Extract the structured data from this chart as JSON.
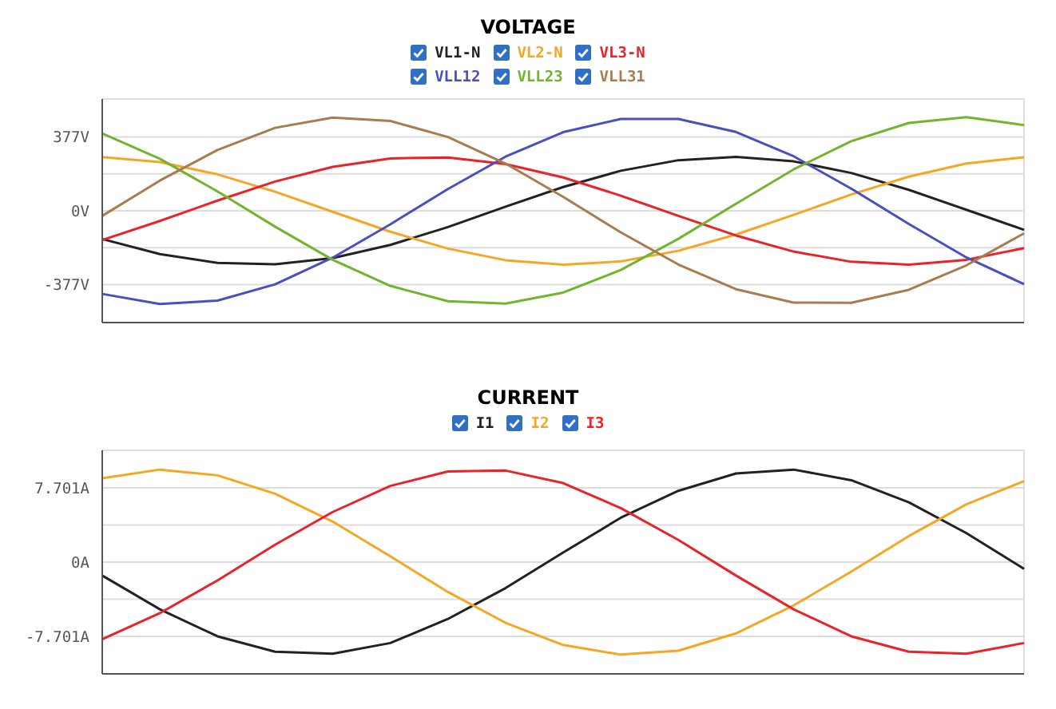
{
  "chart_data": [
    {
      "type": "line",
      "title": "VOLTAGE",
      "legend": "top",
      "grid": true,
      "marker": "none",
      "line_style": "solid",
      "tick_labels": "y",
      "categories": [
        null,
        null,
        null,
        null,
        null,
        null,
        null,
        null,
        null,
        null,
        null,
        null,
        null,
        null,
        null,
        null,
        null
      ],
      "ylim": [
        -570,
        570
      ],
      "yticks": [
        {
          "value": -377,
          "label": "-377V"
        },
        {
          "value": -188.5,
          "label": null
        },
        {
          "value": 0,
          "label": "0V"
        },
        {
          "value": 188.5,
          "label": null
        },
        {
          "value": 377,
          "label": "377V"
        }
      ],
      "series": [
        {
          "name": "VL1-N",
          "color": "#222222",
          "values": [
            -144,
            -221,
            -266,
            -273,
            -241,
            -174,
            -83,
            21,
            121,
            204,
            258,
            275,
            252,
            193,
            107,
            5,
            -97
          ]
        },
        {
          "name": "VL2-N",
          "color": "#f5a623",
          "values": [
            274,
            248,
            186,
            97,
            -5,
            -107,
            -193,
            -252,
            -275,
            -258,
            -204,
            -121,
            -21,
            83,
            174,
            241,
            273
          ]
        },
        {
          "name": "VL3-N",
          "color": "#e8232a",
          "values": [
            -149,
            -52,
            52,
            149,
            224,
            267,
            272,
            238,
            170,
            77,
            -26,
            -126,
            -208,
            -260,
            -275,
            -250,
            -190
          ]
        },
        {
          "name": "VLL12",
          "color": "#4a4fc0",
          "values": [
            -424,
            -475,
            -458,
            -375,
            -239,
            -69,
            111,
            276,
            401,
            468,
            468,
            402,
            278,
            113,
            -67,
            -238,
            -374
          ]
        },
        {
          "name": "VLL23",
          "color": "#74b32f",
          "values": [
            394,
            265,
            99,
            -81,
            -250,
            -383,
            -461,
            -473,
            -417,
            -302,
            -143,
            36,
            211,
            355,
            448,
            477,
            437
          ]
        },
        {
          "name": "VLL31",
          "color": "#a97c50",
          "values": [
            -26,
            154,
            310,
            423,
            475,
            458,
            376,
            241,
            71,
            -110,
            -274,
            -400,
            -468,
            -469,
            -403,
            -278,
            -115
          ]
        }
      ]
    },
    {
      "type": "line",
      "title": "CURRENT",
      "legend": "top",
      "grid": true,
      "marker": "none",
      "line_style": "solid",
      "tick_labels": "y",
      "categories": [
        null,
        null,
        null,
        null,
        null,
        null,
        null,
        null,
        null,
        null,
        null,
        null,
        null,
        null,
        null,
        null,
        null
      ],
      "ylim": [
        -11.6,
        11.6
      ],
      "yticks": [
        {
          "value": -7.701,
          "label": "-7.701A"
        },
        {
          "value": -3.85,
          "label": null
        },
        {
          "value": 0,
          "label": "0A"
        },
        {
          "value": 3.85,
          "label": null
        },
        {
          "value": 7.701,
          "label": "7.701A"
        }
      ],
      "series": [
        {
          "name": "I1",
          "color": "#222222",
          "values": [
            -1.4,
            -4.9,
            -7.7,
            -9.3,
            -9.5,
            -8.4,
            -5.9,
            -2.7,
            1.0,
            4.6,
            7.4,
            9.2,
            9.6,
            8.5,
            6.2,
            3.0,
            -0.7
          ]
        },
        {
          "name": "I2",
          "color": "#f5a623",
          "values": [
            8.7,
            9.6,
            9.0,
            7.1,
            4.2,
            0.6,
            -3.1,
            -6.3,
            -8.6,
            -9.6,
            -9.2,
            -7.4,
            -4.5,
            -1.0,
            2.7,
            6.0,
            8.4
          ]
        },
        {
          "name": "I3",
          "color": "#e8232a",
          "values": [
            -8.0,
            -5.3,
            -1.9,
            1.8,
            5.2,
            7.9,
            9.4,
            9.5,
            8.2,
            5.6,
            2.3,
            -1.4,
            -4.9,
            -7.7,
            -9.3,
            -9.5,
            -8.4
          ]
        }
      ]
    }
  ]
}
